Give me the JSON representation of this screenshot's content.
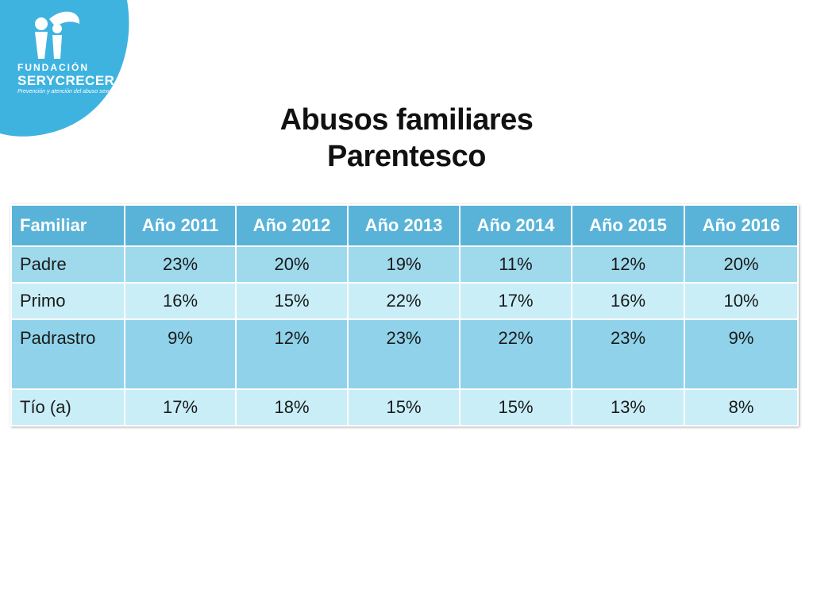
{
  "logo": {
    "line1": "FUNDACIÓN",
    "line2": "SERYCRECER",
    "line3": "Prevención y atención del abuso sexual"
  },
  "title": {
    "line1": "Abusos familiares",
    "line2": "Parentesco"
  },
  "table": {
    "headers": [
      "Familiar",
      "Año 2011",
      "Año 2012",
      "Año 2013",
      "Año 2014",
      "Año 2015",
      "Año 2016"
    ],
    "rows": [
      [
        "Padre",
        "23%",
        "20%",
        "19%",
        "11%",
        "12%",
        "20%"
      ],
      [
        "Primo",
        "16%",
        "15%",
        "22%",
        "17%",
        "16%",
        "10%"
      ],
      [
        "Padrastro",
        "9%",
        "12%",
        "23%",
        "22%",
        "23%",
        "9%"
      ],
      [
        "Tío (a)",
        "17%",
        "18%",
        "15%",
        "15%",
        "13%",
        "8%"
      ]
    ]
  },
  "colors": {
    "brand": "#3fb3e0",
    "header": "#59b3d8",
    "row_dark": "#9fd9ec",
    "row_light": "#c9eef8"
  }
}
